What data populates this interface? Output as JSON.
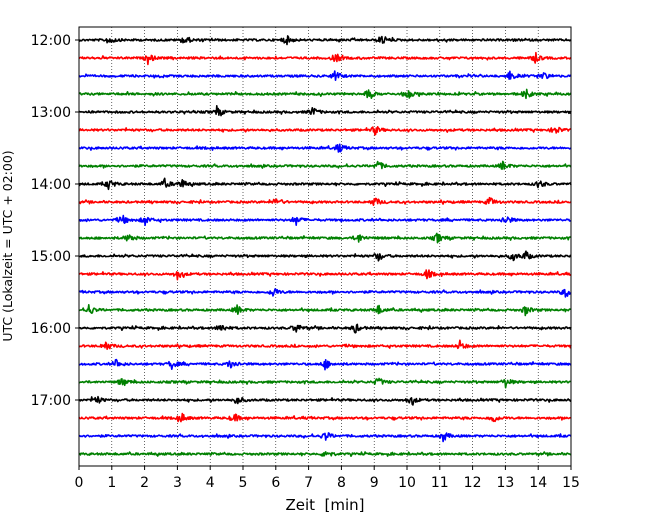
{
  "chart_data": {
    "type": "line",
    "title": "",
    "xlabel": "Zeit  [min]",
    "ylabel": "UTC (Lokalzeit = UTC + 02:00)",
    "xlim": [
      0,
      15
    ],
    "x_ticks": [
      0,
      1,
      2,
      3,
      4,
      5,
      6,
      7,
      8,
      9,
      10,
      11,
      12,
      13,
      14,
      15
    ],
    "y_tick_labels": [
      "12:00",
      "13:00",
      "14:00",
      "15:00",
      "16:00",
      "17:00"
    ],
    "grid": "vertical dotted",
    "legend": "none",
    "trace_color_cycle": [
      "#000000",
      "#ff0000",
      "#0000ff",
      "#008000"
    ],
    "series": [
      {
        "start": "12:00",
        "events_min": [
          0.9,
          3.2,
          6.3,
          9.2
        ]
      },
      {
        "start": "12:15",
        "events_min": [
          2.1,
          7.8,
          13.9
        ]
      },
      {
        "start": "12:30",
        "events_min": [
          7.8,
          13.1,
          14.1
        ]
      },
      {
        "start": "12:45",
        "events_min": [
          8.8,
          10.0,
          13.6
        ]
      },
      {
        "start": "13:00",
        "events_min": [
          4.2,
          7.1
        ]
      },
      {
        "start": "13:15",
        "events_min": [
          9.0,
          14.5
        ]
      },
      {
        "start": "13:30",
        "events_min": [
          7.9
        ]
      },
      {
        "start": "13:45",
        "events_min": [
          9.1,
          12.9
        ]
      },
      {
        "start": "14:00",
        "events_min": [
          0.9,
          2.6,
          3.1,
          14.0
        ]
      },
      {
        "start": "14:15",
        "events_min": [
          6.0,
          9.0,
          12.5
        ]
      },
      {
        "start": "14:30",
        "events_min": [
          1.3,
          2.0,
          6.6,
          13.0
        ]
      },
      {
        "start": "14:45",
        "events_min": [
          1.5,
          8.5,
          10.9
        ]
      },
      {
        "start": "15:00",
        "events_min": [
          9.1,
          13.2,
          13.6
        ]
      },
      {
        "start": "15:15",
        "events_min": [
          3.0,
          10.6
        ]
      },
      {
        "start": "15:30",
        "events_min": [
          5.9,
          14.8
        ]
      },
      {
        "start": "15:45",
        "events_min": [
          0.3,
          4.8,
          9.1,
          13.6
        ]
      },
      {
        "start": "16:00",
        "events_min": [
          4.3,
          6.6,
          8.4
        ]
      },
      {
        "start": "16:15",
        "events_min": [
          0.8,
          11.6
        ]
      },
      {
        "start": "16:30",
        "events_min": [
          1.1,
          2.8,
          4.6,
          7.5
        ]
      },
      {
        "start": "16:45",
        "events_min": [
          1.3,
          9.1,
          13.0
        ]
      },
      {
        "start": "17:00",
        "events_min": [
          0.5,
          4.8,
          10.1
        ]
      },
      {
        "start": "17:15",
        "events_min": [
          3.1,
          4.7,
          12.6
        ]
      },
      {
        "start": "17:30",
        "events_min": [
          7.5,
          11.1
        ]
      },
      {
        "start": "17:45",
        "events_min": [
          7.5
        ]
      }
    ]
  }
}
